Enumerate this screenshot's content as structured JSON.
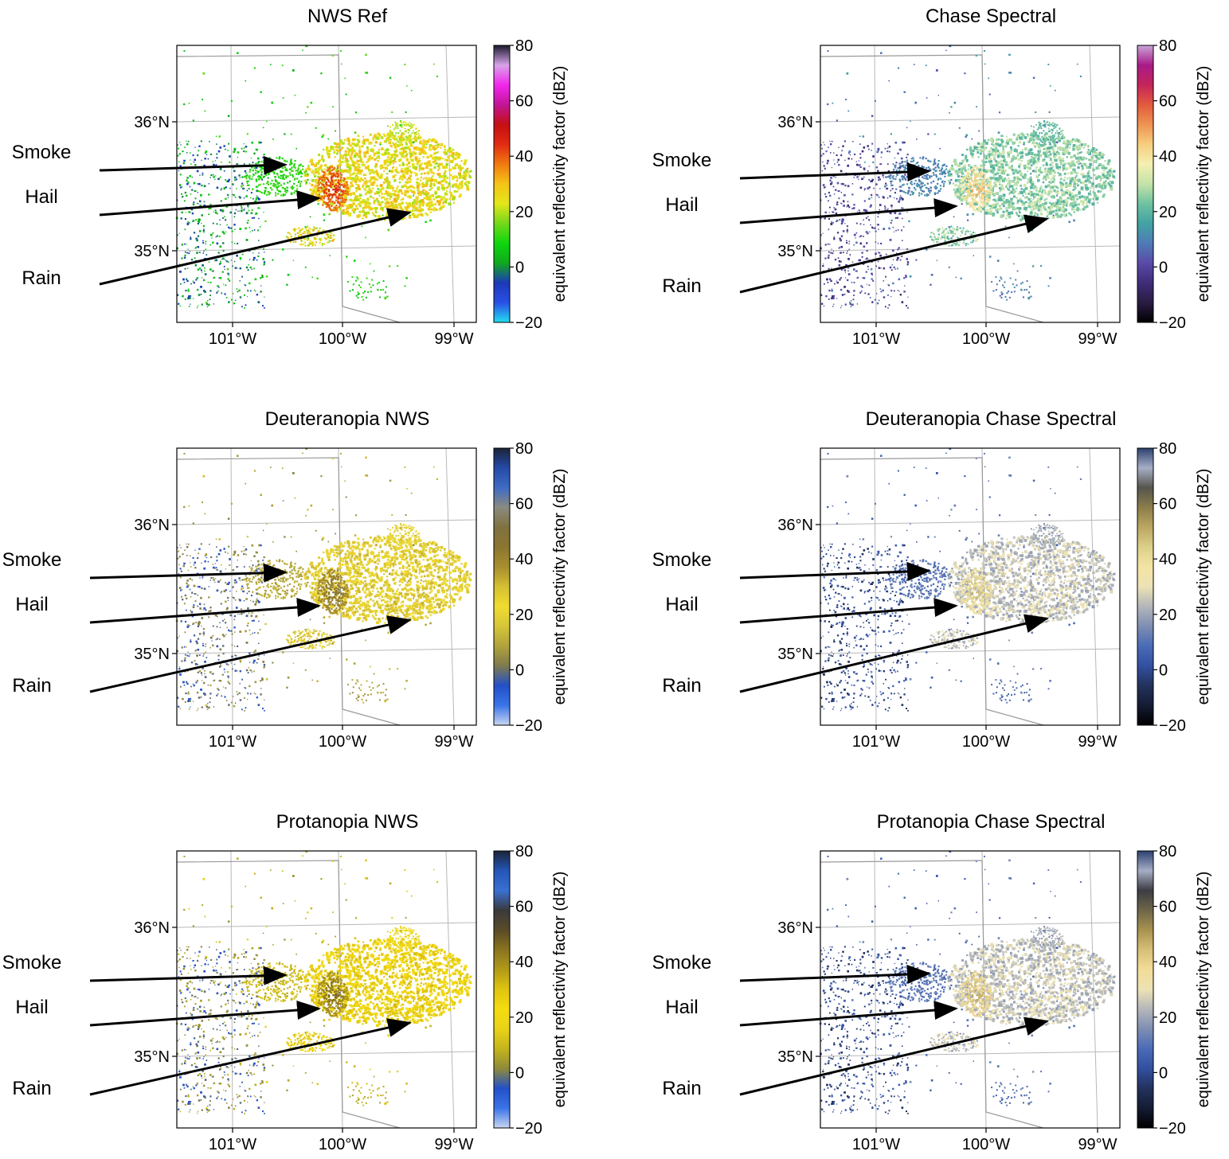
{
  "colors": {
    "axis": "#000000",
    "grid": "#b8b8b8",
    "border": "#8a8a8a",
    "arrow": "#000000"
  },
  "chart_data": [
    {
      "type": "heatmap",
      "title": "NWS Ref",
      "colormap": [
        "#22ddee",
        "#2a4fe6",
        "#1b3ab8",
        "#11a81e",
        "#0ed60e",
        "#74d81a",
        "#e3e61a",
        "#f5c416",
        "#f07a10",
        "#e12b12",
        "#c50f12",
        "#c21596",
        "#f227ee",
        "#d7a4e8",
        "#1a1a2e"
      ],
      "colorbar": {
        "label": "equivalent reflectivity factor (dBZ)",
        "range": [
          -20,
          80
        ],
        "ticks": [
          "80",
          "60",
          "40",
          "20",
          "0",
          "−20"
        ]
      },
      "x_ticks": [
        "101°W",
        "100°W",
        "99°W"
      ],
      "y_ticks": [
        "36°N",
        "35°N"
      ],
      "annotations": [
        "Smoke",
        "Hail",
        "Rain"
      ]
    },
    {
      "type": "heatmap",
      "title": "Chase Spectral",
      "colormap": [
        "#000000",
        "#2a1c42",
        "#3f2d7a",
        "#5a4aa8",
        "#4f7bb5",
        "#42a3a3",
        "#6fc2a0",
        "#c4e3a8",
        "#f5efb2",
        "#f6ce7e",
        "#ee9451",
        "#e35a3e",
        "#c5255a",
        "#a81a88",
        "#c9a6d8"
      ],
      "colorbar": {
        "label": "equivalent reflectivity factor (dBZ)",
        "range": [
          -20,
          80
        ],
        "ticks": [
          "80",
          "60",
          "40",
          "20",
          "0",
          "−20"
        ]
      },
      "x_ticks": [
        "101°W",
        "100°W",
        "99°W"
      ],
      "y_ticks": [
        "36°N",
        "35°N"
      ],
      "annotations": [
        "Smoke",
        "Hail",
        "Rain"
      ]
    },
    {
      "type": "heatmap",
      "title": "Deuteranopia NWS",
      "colormap": [
        "#c8d6f0",
        "#3a74e8",
        "#2350c8",
        "#7f7a4e",
        "#b0a23c",
        "#d6c638",
        "#f0dc30",
        "#d4bf32",
        "#a88e2e",
        "#8b7630",
        "#807240",
        "#8a8a80",
        "#3f6cc4",
        "#244aa8",
        "#1b2438"
      ],
      "colorbar": {
        "label": "equivalent reflectivity factor (dBZ)",
        "range": [
          -20,
          80
        ],
        "ticks": [
          "80",
          "60",
          "40",
          "20",
          "0",
          "−20"
        ]
      },
      "x_ticks": [
        "101°W",
        "100°W",
        "99°W"
      ],
      "y_ticks": [
        "36°N",
        "35°N"
      ],
      "annotations": [
        "Smoke",
        "Hail",
        "Rain"
      ]
    },
    {
      "type": "heatmap",
      "title": "Deuteranopia Chase Spectral",
      "colormap": [
        "#000000",
        "#141c34",
        "#23325c",
        "#3250a0",
        "#4a6bb6",
        "#7e8eb2",
        "#b3b6ba",
        "#ece2b4",
        "#f4e4a4",
        "#dccf8a",
        "#bba763",
        "#8c7d4a",
        "#55554e",
        "#a6aec4",
        "#2c4070"
      ],
      "colorbar": {
        "label": "equivalent reflectivity factor (dBZ)",
        "range": [
          -20,
          80
        ],
        "ticks": [
          "80",
          "60",
          "40",
          "20",
          "0",
          "−20"
        ]
      },
      "x_ticks": [
        "101°W",
        "100°W",
        "99°W"
      ],
      "y_ticks": [
        "36°N",
        "35°N"
      ],
      "annotations": [
        "Smoke",
        "Hail",
        "Rain"
      ]
    },
    {
      "type": "heatmap",
      "title": "Protanopia NWS",
      "colormap": [
        "#c8d6f0",
        "#3a74e8",
        "#2350c8",
        "#8e8a3a",
        "#c4b41c",
        "#e8d218",
        "#f4dc10",
        "#e0c410",
        "#b29a18",
        "#8a7420",
        "#5a4a28",
        "#3a3a3c",
        "#3a70d2",
        "#2456b8",
        "#1b2438"
      ],
      "colorbar": {
        "label": "equivalent reflectivity factor (dBZ)",
        "range": [
          -20,
          80
        ],
        "ticks": [
          "80",
          "60",
          "40",
          "20",
          "0",
          "−20"
        ]
      },
      "x_ticks": [
        "101°W",
        "100°W",
        "99°W"
      ],
      "y_ticks": [
        "36°N",
        "35°N"
      ],
      "annotations": [
        "Smoke",
        "Hail",
        "Rain"
      ]
    },
    {
      "type": "heatmap",
      "title": "Protanopia Chase Spectral",
      "colormap": [
        "#000000",
        "#141c34",
        "#23325c",
        "#3250a0",
        "#4a6bb6",
        "#7e8eb2",
        "#b3b6ba",
        "#ece2b4",
        "#f2dc98",
        "#d6c078",
        "#a89250",
        "#6e6648",
        "#3c3c44",
        "#a6aec4",
        "#2c4070"
      ],
      "colorbar": {
        "label": "equivalent reflectivity factor (dBZ)",
        "range": [
          -20,
          80
        ],
        "ticks": [
          "80",
          "60",
          "40",
          "20",
          "0",
          "−20"
        ]
      },
      "x_ticks": [
        "101°W",
        "100°W",
        "99°W"
      ],
      "y_ticks": [
        "36°N",
        "35°N"
      ],
      "annotations": [
        "Smoke",
        "Hail",
        "Rain"
      ]
    }
  ]
}
